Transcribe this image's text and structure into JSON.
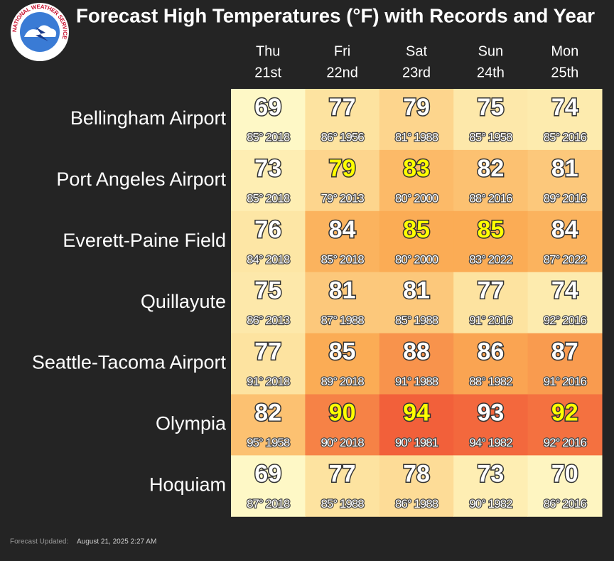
{
  "header": {
    "title": "Forecast High Temperatures (°F) with Records and Year",
    "logo_text": "NATIONAL WEATHER SERVICE"
  },
  "table": {
    "columns": [
      [
        "Thu",
        "21st"
      ],
      [
        "Fri",
        "22nd"
      ],
      [
        "Sat",
        "23rd"
      ],
      [
        "Sun",
        "24th"
      ],
      [
        "Mon",
        "25th"
      ]
    ],
    "color_scale": [
      [
        69,
        "#fef8c6"
      ],
      [
        77,
        "#fde3a0"
      ],
      [
        85,
        "#fbac55"
      ],
      [
        94,
        "#f2603a"
      ]
    ],
    "text_color": "#ffffff",
    "highlight_color": "#ffff00",
    "rows": [
      {
        "station": "Bellingham Airport",
        "forecast": [
          69,
          77,
          79,
          75,
          74
        ],
        "records": [
          "85° 2018",
          "86° 1956",
          "81° 1988",
          "85° 1958",
          "85° 2016"
        ],
        "highlight": [
          false,
          false,
          false,
          false,
          false
        ]
      },
      {
        "station": "Port Angeles Airport",
        "forecast": [
          73,
          79,
          83,
          82,
          81
        ],
        "records": [
          "85° 2018",
          "79° 2013",
          "80° 2000",
          "88° 2016",
          "89° 2016"
        ],
        "highlight": [
          false,
          true,
          true,
          false,
          false
        ]
      },
      {
        "station": "Everett-Paine Field",
        "forecast": [
          76,
          84,
          85,
          85,
          84
        ],
        "records": [
          "84° 2018",
          "85° 2018",
          "80° 2000",
          "83° 2022",
          "87° 2022"
        ],
        "highlight": [
          false,
          false,
          true,
          true,
          false
        ]
      },
      {
        "station": "Quillayute",
        "forecast": [
          75,
          81,
          81,
          77,
          74
        ],
        "records": [
          "86° 2013",
          "87° 1988",
          "85° 1988",
          "91° 2016",
          "92° 2016"
        ],
        "highlight": [
          false,
          false,
          false,
          false,
          false
        ]
      },
      {
        "station": "Seattle-Tacoma Airport",
        "forecast": [
          77,
          85,
          88,
          86,
          87
        ],
        "records": [
          "91° 2018",
          "89° 2018",
          "91° 1988",
          "88° 1982",
          "91° 2016"
        ],
        "highlight": [
          false,
          false,
          false,
          false,
          false
        ]
      },
      {
        "station": "Olympia",
        "forecast": [
          82,
          90,
          94,
          93,
          92
        ],
        "records": [
          "95° 1958",
          "90° 2018",
          "90° 1981",
          "94° 1982",
          "92° 2016"
        ],
        "highlight": [
          false,
          true,
          true,
          false,
          true
        ]
      },
      {
        "station": "Hoquiam",
        "forecast": [
          69,
          77,
          78,
          73,
          70
        ],
        "records": [
          "87° 2018",
          "85° 1988",
          "86° 1988",
          "90° 1982",
          "86° 2016"
        ],
        "highlight": [
          false,
          false,
          false,
          false,
          false
        ]
      }
    ]
  },
  "footer": {
    "label": "Forecast Updated:",
    "timestamp": "August 21, 2025 2:27 AM"
  }
}
